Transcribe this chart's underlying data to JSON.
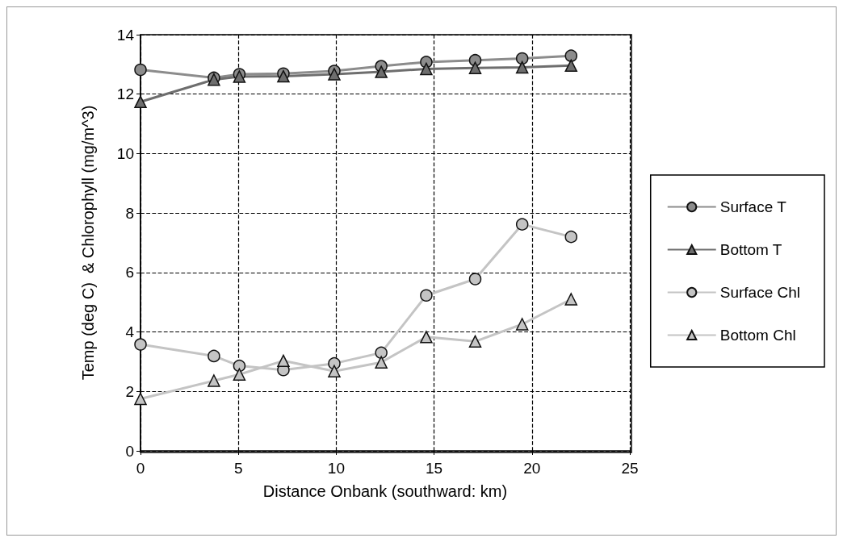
{
  "chart_data": {
    "type": "line",
    "xlabel": "Distance Onbank (southward: km)",
    "ylabel": "Temp (deg C)  & Chlorophyll (mg/m^3)",
    "x": [
      0,
      3.75,
      5.05,
      7.3,
      9.9,
      12.3,
      14.6,
      17.1,
      19.5,
      22.0
    ],
    "xlim": [
      0,
      25
    ],
    "xticks": [
      0,
      5,
      10,
      15,
      20,
      25
    ],
    "ylim": [
      0,
      14
    ],
    "yticks": [
      0,
      2,
      4,
      6,
      8,
      10,
      12,
      14
    ],
    "grid": true,
    "legend": "right",
    "line_style": "solid",
    "series": [
      {
        "name": "Surface T",
        "color": "#8c8c8c",
        "marker": "circle",
        "values": [
          12.82,
          12.55,
          12.67,
          12.69,
          12.78,
          12.94,
          13.08,
          13.14,
          13.2,
          13.29
        ]
      },
      {
        "name": "Bottom T",
        "color": "#6e6e6e",
        "marker": "triangle",
        "values": [
          11.74,
          12.49,
          12.59,
          12.6,
          12.67,
          12.75,
          12.85,
          12.88,
          12.9,
          12.96
        ]
      },
      {
        "name": "Surface Chl",
        "color": "#c4c4c4",
        "marker": "circle",
        "values": [
          3.58,
          3.19,
          2.86,
          2.72,
          2.94,
          3.3,
          5.23,
          5.78,
          7.62,
          7.2
        ]
      },
      {
        "name": "Bottom Chl",
        "color": "#c4c4c4",
        "marker": "triangle",
        "values": [
          1.75,
          2.36,
          2.57,
          3.03,
          2.68,
          2.98,
          3.83,
          3.68,
          4.26,
          5.1
        ]
      }
    ]
  }
}
